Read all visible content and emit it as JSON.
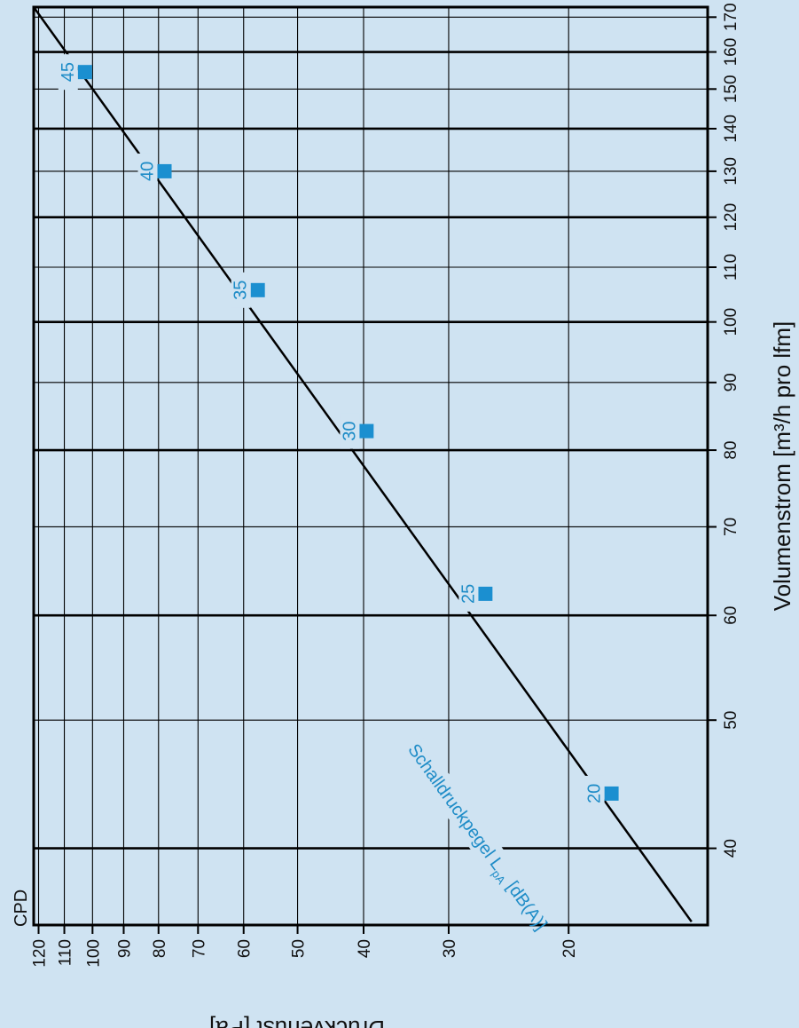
{
  "chart_data": {
    "type": "scatter",
    "orientation": "rotated-90-cw",
    "x_axis": {
      "label": "Volumenstrom [m³/h pro lfm]",
      "scale": "log",
      "range": [
        35,
        173
      ],
      "ticks": [
        40,
        50,
        60,
        70,
        80,
        90,
        100,
        110,
        120,
        130,
        140,
        150,
        160,
        170
      ],
      "major_lines": [
        40,
        60,
        80,
        100,
        120,
        140,
        160
      ]
    },
    "y_axis": {
      "label": "Druckverlust [Pa]",
      "scale": "log",
      "range": [
        12.5,
        122
      ],
      "ticks": [
        20,
        30,
        40,
        50,
        60,
        70,
        80,
        90,
        100,
        110,
        120
      ]
    },
    "corner_label": "CPD",
    "line": {
      "from": {
        "x": 35.2,
        "y": 13.2
      },
      "to": {
        "x": 173,
        "y": 122
      }
    },
    "points": [
      {
        "x": 44,
        "y": 17.3,
        "label": "20"
      },
      {
        "x": 62.3,
        "y": 26.5,
        "label": "25"
      },
      {
        "x": 82.7,
        "y": 39.6,
        "label": "30"
      },
      {
        "x": 105.7,
        "y": 57.2,
        "label": "35"
      },
      {
        "x": 130,
        "y": 78.4,
        "label": "40"
      },
      {
        "x": 154.5,
        "y": 102.6,
        "label": "45"
      }
    ],
    "series_label": {
      "prefix": "Schalldruckpegel L",
      "subscript": "pA",
      "suffix": " [dB(A)]"
    },
    "colors": {
      "background": "#cfe3f2",
      "marker": "#1b8fd0",
      "marker_text": "#1e8cc7",
      "line": "#000000"
    }
  }
}
